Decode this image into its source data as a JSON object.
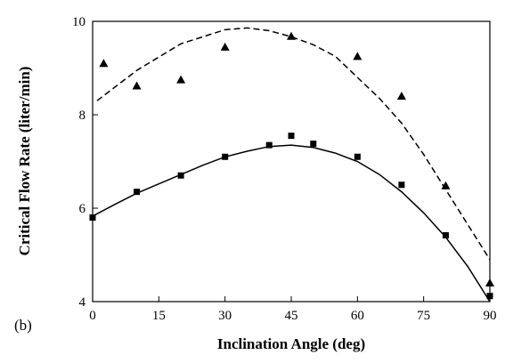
{
  "chart_data": {
    "type": "scatter",
    "panel_label": "(b)",
    "xlabel": "Inclination Angle (deg)",
    "ylabel": "Critical Flow Rate (liter/min)",
    "xlim": [
      0,
      90
    ],
    "ylim": [
      4,
      10
    ],
    "x_ticks": [
      0,
      15,
      30,
      45,
      60,
      75,
      90
    ],
    "y_ticks": [
      4,
      6,
      8,
      10
    ],
    "grid": false,
    "legend": "none",
    "series": [
      {
        "marker": "triangle",
        "style": "points",
        "points": [
          [
            2.5,
            9.1
          ],
          [
            10,
            8.62
          ],
          [
            20,
            8.75
          ],
          [
            30,
            9.45
          ],
          [
            45,
            9.68
          ],
          [
            60,
            9.25
          ],
          [
            70,
            8.4
          ],
          [
            80,
            6.48
          ],
          [
            90,
            4.4
          ]
        ]
      },
      {
        "marker": "square",
        "style": "points",
        "points": [
          [
            0,
            5.8
          ],
          [
            10,
            6.35
          ],
          [
            20,
            6.7
          ],
          [
            30,
            7.1
          ],
          [
            40,
            7.35
          ],
          [
            45,
            7.55
          ],
          [
            50,
            7.38
          ],
          [
            60,
            7.1
          ],
          [
            70,
            6.5
          ],
          [
            80,
            5.42
          ],
          [
            90,
            4.12
          ]
        ]
      },
      {
        "style": "dashed-line",
        "points": [
          [
            1,
            8.3
          ],
          [
            10,
            8.95
          ],
          [
            20,
            9.52
          ],
          [
            30,
            9.82
          ],
          [
            35,
            9.86
          ],
          [
            40,
            9.8
          ],
          [
            45,
            9.67
          ],
          [
            50,
            9.5
          ],
          [
            55,
            9.25
          ],
          [
            60,
            8.8
          ],
          [
            65,
            8.35
          ],
          [
            70,
            7.82
          ],
          [
            75,
            7.15
          ],
          [
            80,
            6.4
          ],
          [
            85,
            5.65
          ],
          [
            90,
            4.9
          ]
        ]
      },
      {
        "style": "solid-line",
        "points": [
          [
            0,
            5.83
          ],
          [
            5,
            6.08
          ],
          [
            10,
            6.32
          ],
          [
            15,
            6.52
          ],
          [
            20,
            6.72
          ],
          [
            25,
            6.92
          ],
          [
            30,
            7.1
          ],
          [
            35,
            7.22
          ],
          [
            40,
            7.32
          ],
          [
            45,
            7.35
          ],
          [
            50,
            7.3
          ],
          [
            55,
            7.18
          ],
          [
            60,
            7.0
          ],
          [
            65,
            6.72
          ],
          [
            70,
            6.35
          ],
          [
            75,
            5.9
          ],
          [
            80,
            5.38
          ],
          [
            85,
            4.75
          ],
          [
            90,
            4.0
          ]
        ]
      }
    ]
  }
}
